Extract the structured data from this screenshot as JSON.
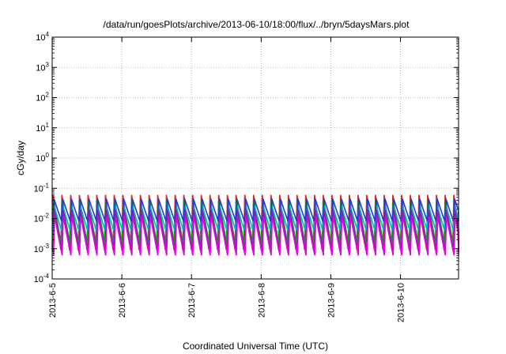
{
  "chart_data": {
    "type": "line",
    "title": "/data/run/goesPlots/archive/2013-06-10/18:00/flux/../bryn/5daysMars.plot",
    "xlabel": "Coordinated Universal Time (UTC)",
    "ylabel": "cGy/day",
    "y_scale": "log",
    "ylim": [
      0.0001,
      10000
    ],
    "xlim": [
      "2013-06-05",
      "2013-06-10T20:00"
    ],
    "x_ticks": [
      "2013-6-5",
      "2013-6-6",
      "2013-6-7",
      "2013-6-8",
      "2013-6-9",
      "2013-6-10"
    ],
    "y_ticks": [
      {
        "base": "10",
        "exp": "-4"
      },
      {
        "base": "10",
        "exp": "-3"
      },
      {
        "base": "10",
        "exp": "-2"
      },
      {
        "base": "10",
        "exp": "-1"
      },
      {
        "base": "10",
        "exp": "0"
      },
      {
        "base": "10",
        "exp": "1"
      },
      {
        "base": "10",
        "exp": "2"
      },
      {
        "base": "10",
        "exp": "3"
      },
      {
        "base": "10",
        "exp": "4"
      }
    ],
    "grid": true,
    "legend": "none",
    "cycle_hours": 3,
    "series": [
      {
        "color": "#e51e1e",
        "peak": 0.06,
        "trough": 0.0009
      },
      {
        "color": "#00aa00",
        "peak": 0.04,
        "trough": 0.0015
      },
      {
        "color": "#00b4c8",
        "peak": 0.03,
        "trough": 0.004
      },
      {
        "color": "#1e3cd2",
        "peak": 0.045,
        "trough": 0.008
      },
      {
        "color": "#8c1eb4",
        "peak": 0.02,
        "trough": 0.0008
      },
      {
        "color": "#e600e6",
        "peak": 0.012,
        "trough": 0.0006
      }
    ]
  }
}
